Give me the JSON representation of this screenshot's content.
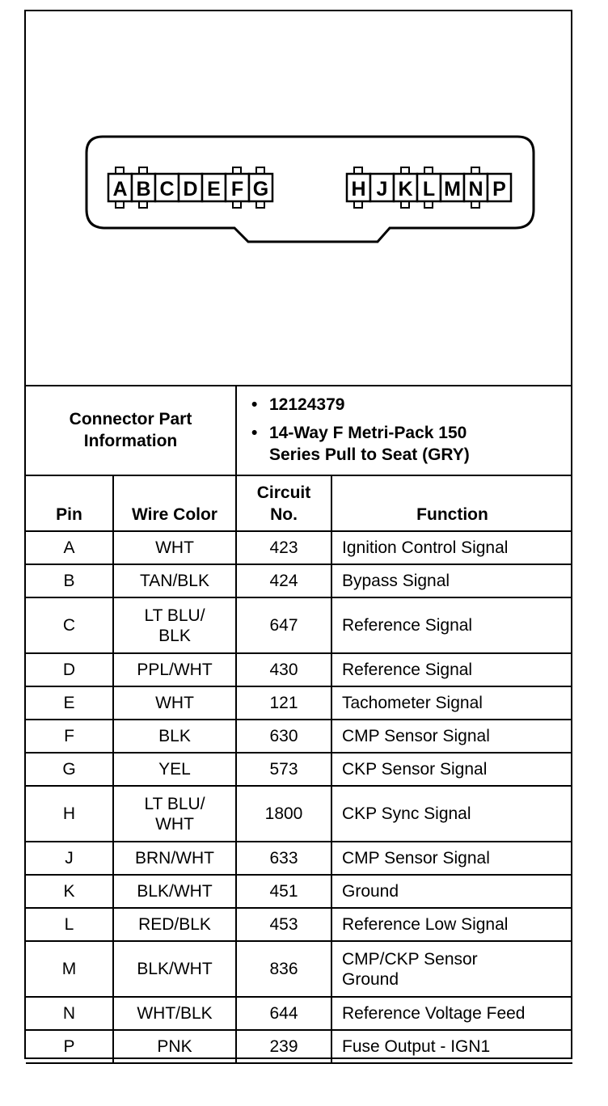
{
  "connector": {
    "left_pins": [
      "A",
      "B",
      "C",
      "D",
      "E",
      "F",
      "G"
    ],
    "right_pins": [
      "H",
      "J",
      "K",
      "L",
      "M",
      "N",
      "P"
    ],
    "tabbed_pins": [
      "A",
      "B",
      "F",
      "G",
      "H",
      "K",
      "L",
      "N"
    ]
  },
  "info": {
    "label_line1": "Connector Part",
    "label_line2": "Information",
    "items": [
      "12124379",
      "14-Way F Metri-Pack 150",
      "Series Pull to Seat (GRY)"
    ]
  },
  "headers": {
    "pin": "Pin",
    "wire": "Wire Color",
    "circuit_1": "Circuit",
    "circuit_2": "No.",
    "function": "Function"
  },
  "rows": [
    {
      "pin": "A",
      "wire": "WHT",
      "wire2": "",
      "circuit": "423",
      "function": "Ignition Control Signal",
      "function2": ""
    },
    {
      "pin": "B",
      "wire": "TAN/BLK",
      "wire2": "",
      "circuit": "424",
      "function": "Bypass Signal",
      "function2": ""
    },
    {
      "pin": "C",
      "wire": "LT BLU/",
      "wire2": "BLK",
      "circuit": "647",
      "function": "Reference Signal",
      "function2": ""
    },
    {
      "pin": "D",
      "wire": "PPL/WHT",
      "wire2": "",
      "circuit": "430",
      "function": "Reference Signal",
      "function2": ""
    },
    {
      "pin": "E",
      "wire": "WHT",
      "wire2": "",
      "circuit": "121",
      "function": "Tachometer Signal",
      "function2": ""
    },
    {
      "pin": "F",
      "wire": "BLK",
      "wire2": "",
      "circuit": "630",
      "function": "CMP Sensor Signal",
      "function2": ""
    },
    {
      "pin": "G",
      "wire": "YEL",
      "wire2": "",
      "circuit": "573",
      "function": "CKP Sensor Signal",
      "function2": ""
    },
    {
      "pin": "H",
      "wire": "LT BLU/",
      "wire2": "WHT",
      "circuit": "1800",
      "function": "CKP Sync Signal",
      "function2": ""
    },
    {
      "pin": "J",
      "wire": "BRN/WHT",
      "wire2": "",
      "circuit": "633",
      "function": "CMP Sensor Signal",
      "function2": ""
    },
    {
      "pin": "K",
      "wire": "BLK/WHT",
      "wire2": "",
      "circuit": "451",
      "function": "Ground",
      "function2": ""
    },
    {
      "pin": "L",
      "wire": "RED/BLK",
      "wire2": "",
      "circuit": "453",
      "function": "Reference Low Signal",
      "function2": ""
    },
    {
      "pin": "M",
      "wire": "BLK/WHT",
      "wire2": "",
      "circuit": "836",
      "function": "CMP/CKP Sensor",
      "function2": "Ground"
    },
    {
      "pin": "N",
      "wire": "WHT/BLK",
      "wire2": "",
      "circuit": "644",
      "function": "Reference Voltage Feed",
      "function2": ""
    },
    {
      "pin": "P",
      "wire": "PNK",
      "wire2": "",
      "circuit": "239",
      "function": "Fuse Output - IGN1",
      "function2": ""
    }
  ]
}
